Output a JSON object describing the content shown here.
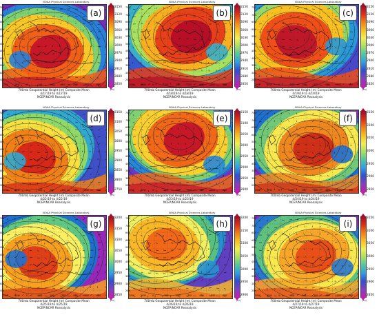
{
  "credit": "NOAA Physical Sciences Laboratory",
  "unit": "(m)",
  "reanalysis": "NCEP/NCAR Reanalysis",
  "lat_labels": [
    "75N",
    "70N",
    "65N",
    "60N",
    "55N",
    "50N",
    "45N",
    "40N",
    "35N",
    "30N",
    "25N"
  ],
  "lon_labels": [
    "20W",
    "10W",
    "0",
    "10E",
    "20E",
    "30E",
    "40E",
    "50E",
    "60E"
  ],
  "panels": [
    {
      "letter": "(a)",
      "title": "700mb Geopotential Height (m) Composite Mean",
      "dates": "4/17/19 to 4/17/19",
      "ticks": [
        "3150",
        "3120",
        "3090",
        "3060",
        "3030",
        "3000",
        "2970",
        "2940",
        "2910",
        "2880",
        "2850"
      ],
      "colors": {
        "hot": "#c81828",
        "warm": "#f06018",
        "mid": "#f8c828",
        "cool": "#7ed070",
        "cold": "#2880d8",
        "deep": "#7030b8"
      }
    },
    {
      "letter": "(b)",
      "title": "700mb Geopotential Height (m) Composite Mean",
      "dates": "4/18/19 to 4/18/19",
      "ticks": [
        "3150",
        "3120",
        "3090",
        "3060",
        "3030",
        "3000",
        "2970",
        "2940",
        "2910",
        "2880",
        "2850"
      ],
      "colors": {
        "hot": "#b80f26",
        "warm": "#e84018",
        "mid": "#f8b020",
        "cool": "#a8e060",
        "cold": "#38b0c8",
        "deep": "#3858d0"
      }
    },
    {
      "letter": "(c)",
      "title": "700mb Geopotential Height (m) Composite Mean",
      "dates": "4/19/19 to 4/19/19",
      "ticks": [
        "3150",
        "3120",
        "3090",
        "3060",
        "3030",
        "3000",
        "2970",
        "2940",
        "2910",
        "2880",
        "2850"
      ],
      "colors": {
        "hot": "#c01828",
        "warm": "#f05018",
        "mid": "#f8c020",
        "cool": "#98d868",
        "cold": "#2898d8",
        "deep": "#4848c8"
      }
    },
    {
      "letter": "(d)",
      "title": "700mb Geopotential Height (m) Composite Mean",
      "dates": "4/22/19 to 4/22/19",
      "ticks": [
        "3150",
        "3100",
        "3050",
        "3000",
        "2950",
        "2900",
        "2850",
        "2800",
        "2750"
      ],
      "colors": {
        "hot": "#d82818",
        "warm": "#f08018",
        "mid": "#f8e040",
        "cool": "#90d868",
        "cold": "#30a8d0",
        "deep": "#4050c8"
      }
    },
    {
      "letter": "(e)",
      "title": "700mb Geopotential Height (m) Composite Mean",
      "dates": "4/23/19 to 4/23/19",
      "ticks": [
        "3150",
        "3100",
        "3050",
        "3000",
        "2950",
        "2900",
        "2850",
        "2800"
      ],
      "colors": {
        "hot": "#c81828",
        "warm": "#f06818",
        "mid": "#f8d030",
        "cool": "#80d070",
        "cold": "#2888d8",
        "deep": "#6838c0"
      }
    },
    {
      "letter": "(f)",
      "title": "700mb Geopotential Height (m) Composite Mean",
      "dates": "4/24/19 to 4/24/19",
      "ticks": [
        "3150",
        "3100",
        "3050",
        "3000",
        "2950",
        "2900",
        "2850"
      ],
      "colors": {
        "hot": "#d03018",
        "warm": "#f08820",
        "mid": "#f8e850",
        "cool": "#70c878",
        "cold": "#2070d0",
        "deep": "#8030b8"
      }
    },
    {
      "letter": "(g)",
      "title": "700mb Geopotential Height (m) Composite Mean",
      "dates": "4/25/19 to 4/25/19",
      "ticks": [
        "3200",
        "3150",
        "3100",
        "3050",
        "3000",
        "2950",
        "2900",
        "2850"
      ],
      "colors": {
        "hot": "#e04018",
        "warm": "#f8a020",
        "mid": "#f8f060",
        "cool": "#60c880",
        "cold": "#2070d0",
        "deep": "#9828b8"
      }
    },
    {
      "letter": "(h)",
      "title": "700mb Geopotential Height (m) Composite Mean",
      "dates": "4/26/19 to 4/26/19",
      "ticks": [
        "3200",
        "3150",
        "3100",
        "3050",
        "3000",
        "2950",
        "2900"
      ],
      "colors": {
        "hot": "#f06818",
        "warm": "#f8b828",
        "mid": "#f0f060",
        "cool": "#58c080",
        "cold": "#2890d0",
        "deep": "#6040c0"
      }
    },
    {
      "letter": "(i)",
      "title": "700mb Geopotential Height (m) Composite Mean",
      "dates": "4/27/19 to 4/27/19",
      "ticks": [
        "3150",
        "3100",
        "3050",
        "3000",
        "2950",
        "2900",
        "2850"
      ],
      "colors": {
        "hot": "#e85018",
        "warm": "#f8a828",
        "mid": "#f8e850",
        "cool": "#60c080",
        "cold": "#2878d0",
        "deep": "#8830b8"
      }
    }
  ]
}
